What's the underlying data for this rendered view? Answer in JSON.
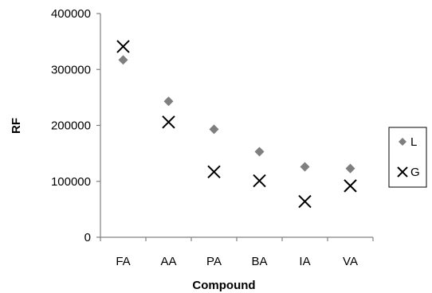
{
  "chart_data": {
    "type": "scatter",
    "title": "",
    "xlabel": "Compound",
    "ylabel": "RF",
    "categories": [
      "FA",
      "AA",
      "PA",
      "BA",
      "IA",
      "VA"
    ],
    "ylim": [
      0,
      400000
    ],
    "yticks": [
      0,
      100000,
      200000,
      300000,
      400000
    ],
    "ytick_labels": [
      "0",
      "100000",
      "200000",
      "300000",
      "400000"
    ],
    "grid": false,
    "legend_position": "right",
    "series": [
      {
        "name": "L",
        "marker": "diamond",
        "color": "#7f7f7f",
        "values": [
          317000,
          243000,
          193000,
          153000,
          126000,
          123000
        ]
      },
      {
        "name": "G",
        "marker": "x",
        "color": "#000000",
        "values": [
          341000,
          206000,
          117000,
          101000,
          64000,
          92000
        ]
      }
    ]
  }
}
